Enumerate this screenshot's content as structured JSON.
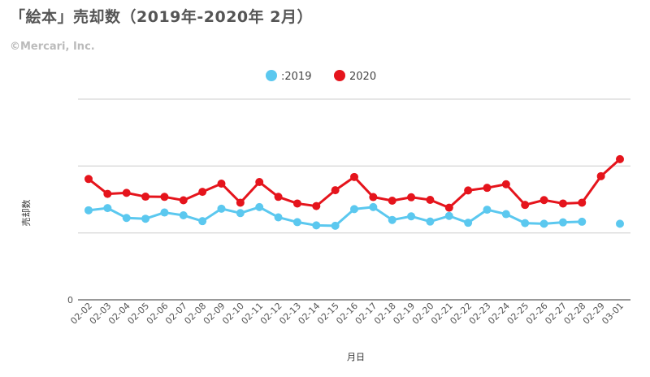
{
  "title": "「絵本」売却数（2019年-2020年 2月）",
  "copyright": "©Mercari, Inc.",
  "colors": {
    "series_2019": "#5bc8ef",
    "series_2020": "#e5141c",
    "grid": "#cccccc",
    "axis": "#333333"
  },
  "chart_data": {
    "type": "line",
    "xlabel": "月日",
    "ylabel": "売却数",
    "y_tick_labels": [
      "0"
    ],
    "ylim": [
      0,
      100
    ],
    "grid": true,
    "legend_position": "top-center",
    "categories": [
      "02-02",
      "02-03",
      "02-04",
      "02-05",
      "02-06",
      "02-07",
      "02-08",
      "02-09",
      "02-10",
      "02-11",
      "02-12",
      "02-13",
      "02-14",
      "02-15",
      "02-16",
      "02-17",
      "02-18",
      "02-19",
      "02-20",
      "02-21",
      "02-22",
      "02-23",
      "02-24",
      "02-25",
      "02-26",
      "02-27",
      "02-28",
      "02-29",
      "03-01"
    ],
    "series": [
      {
        "name": ":2019",
        "values": [
          44.6,
          45.7,
          40.8,
          40.4,
          43.5,
          42.1,
          39.2,
          45.4,
          43.2,
          46.2,
          41.1,
          38.7,
          37.1,
          36.9,
          45.2,
          46.2,
          39.8,
          41.6,
          39.0,
          41.8,
          38.4,
          44.9,
          42.7,
          38.2,
          37.9,
          38.6,
          38.9,
          null,
          37.9
        ]
      },
      {
        "name": "2020",
        "values": [
          60.2,
          52.8,
          53.3,
          51.4,
          51.3,
          49.6,
          53.8,
          57.9,
          48.4,
          58.7,
          51.3,
          48.0,
          46.7,
          54.6,
          61.2,
          51.2,
          49.4,
          51.1,
          49.8,
          45.9,
          54.5,
          55.8,
          57.6,
          47.3,
          49.7,
          48.0,
          48.4,
          61.6,
          70.1
        ]
      }
    ]
  }
}
